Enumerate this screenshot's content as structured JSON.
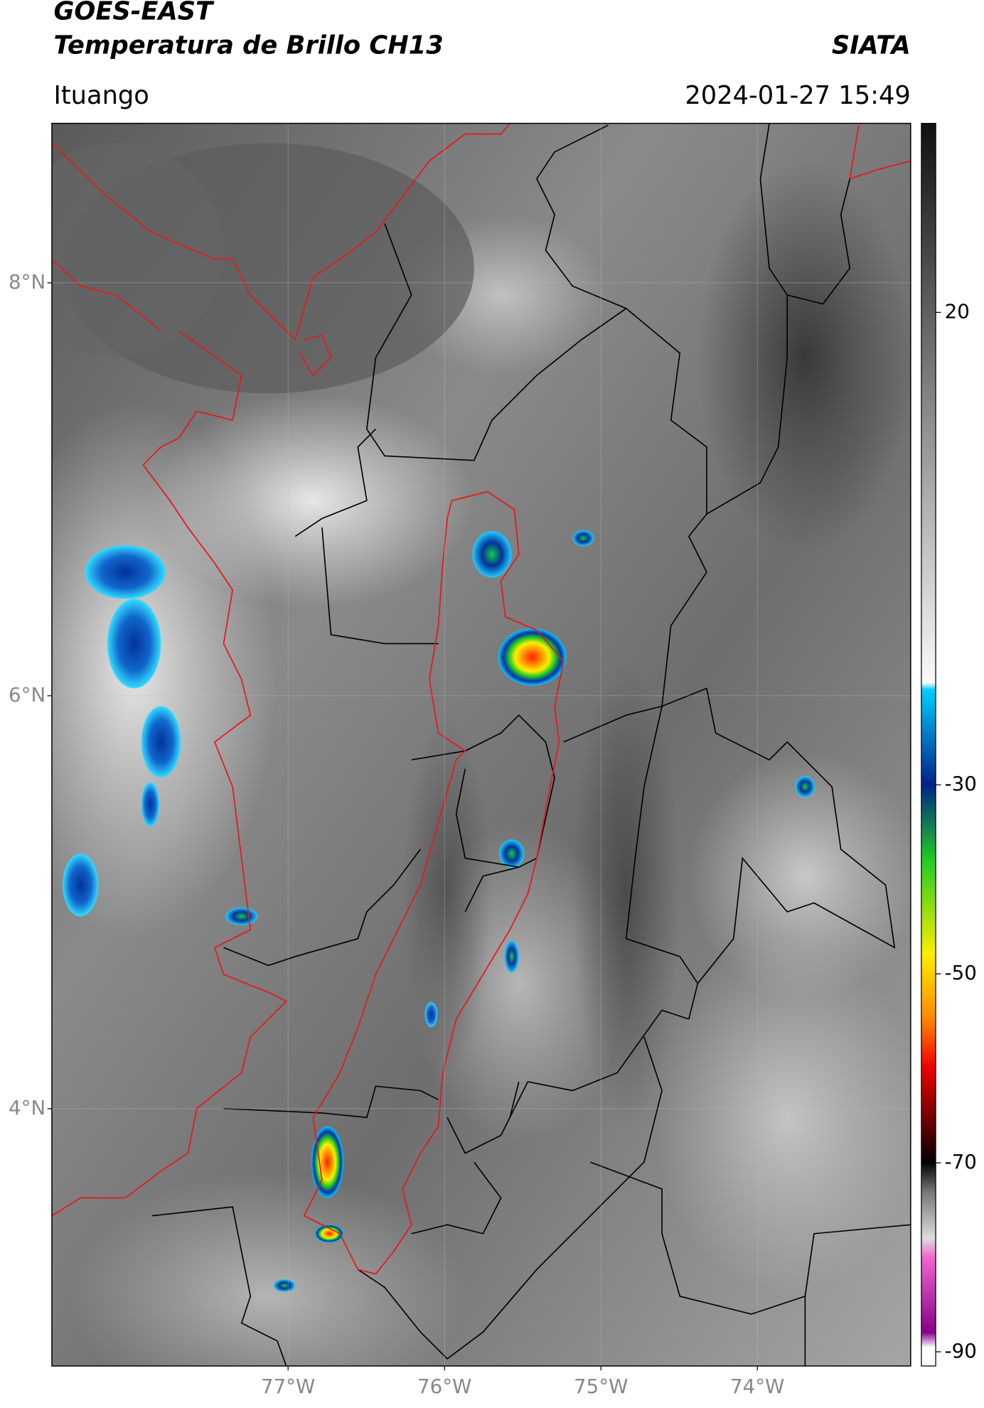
{
  "header": {
    "title": "GOES-EAST",
    "subtitle": "Temperatura de Brillo CH13",
    "brand": "SIATA",
    "location": "Ituango",
    "timestamp": "2024-01-27 15:49"
  },
  "map": {
    "lonlim": [
      -78.51,
      -73.02
    ],
    "latlim": [
      2.754,
      8.772
    ],
    "lat_ticks": [
      {
        "value": 8,
        "label": "8°N"
      },
      {
        "value": 6,
        "label": "6°N"
      },
      {
        "value": 4,
        "label": "4°N"
      }
    ],
    "lon_ticks": [
      {
        "value": -77,
        "label": "77°W"
      },
      {
        "value": -76,
        "label": "76°W"
      },
      {
        "value": -75,
        "label": "75°W"
      },
      {
        "value": -74,
        "label": "74°W"
      }
    ]
  },
  "colorbar": {
    "lim": [
      40,
      -91.5
    ],
    "ticks": [
      20,
      -30,
      -50,
      -70,
      -90
    ]
  }
}
